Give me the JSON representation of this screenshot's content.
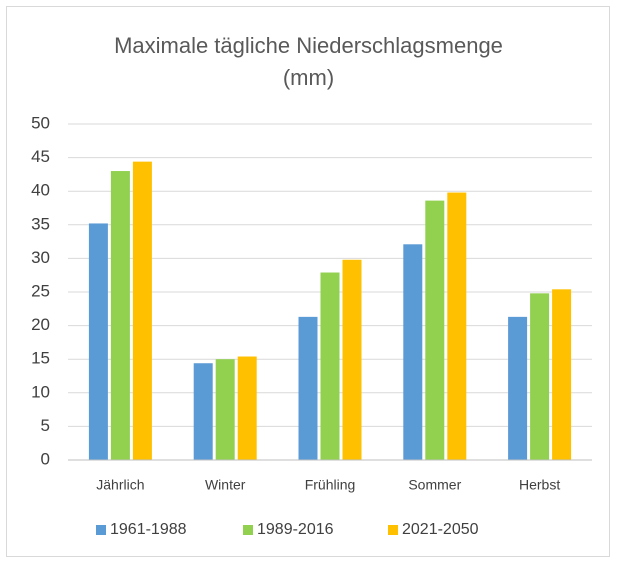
{
  "chart_data": {
    "type": "bar",
    "title": "Maximale tägliche Niederschlagsmenge (mm)",
    "categories": [
      "Jährlich",
      "Winter",
      "Frühling",
      "Sommer",
      "Herbst"
    ],
    "series": [
      {
        "name": "1961-1988",
        "color": "#5b9bd5",
        "values": [
          35.2,
          14.4,
          21.3,
          32.1,
          21.3
        ]
      },
      {
        "name": "1989-2016",
        "color": "#92d050",
        "values": [
          43,
          15,
          27.9,
          38.6,
          24.8
        ]
      },
      {
        "name": "2021-2050",
        "color": "#ffc000",
        "values": [
          44.4,
          15.4,
          29.8,
          39.8,
          25.4
        ]
      }
    ],
    "ylim": [
      0,
      50
    ],
    "yticks": [
      0,
      5,
      10,
      15,
      20,
      25,
      30,
      35,
      40,
      45,
      50
    ],
    "grid": true,
    "legend": "bottom"
  }
}
